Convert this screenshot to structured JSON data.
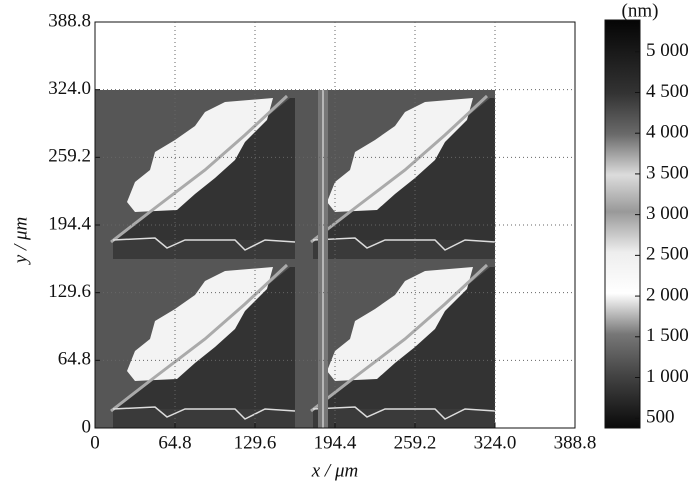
{
  "chart_data": {
    "type": "heatmap",
    "xlabel": "x / μm",
    "ylabel": "y / μm",
    "xlim": [
      0,
      388.8
    ],
    "xticks": [
      0,
      64.8,
      129.6,
      194.4,
      259.2,
      {
        "value": 324,
        "label": "324.0"
      },
      388.8
    ],
    "ylim": [
      0,
      388.8
    ],
    "yticks": [
      0,
      64.8,
      129.6,
      194.4,
      259.2,
      {
        "value": 324,
        "label": "324.0"
      },
      388.8
    ],
    "grid": true,
    "colorbar": {
      "label": "(nm)",
      "lim": [
        380,
        5390
      ],
      "ticks": [
        500,
        {
          "value": 1000,
          "label": "1 000"
        },
        {
          "value": 1500,
          "label": "1 500"
        },
        {
          "value": 2000,
          "label": "2 000"
        },
        {
          "value": 2500,
          "label": "2 500"
        },
        {
          "value": 3000,
          "label": "3 000"
        },
        {
          "value": 3500,
          "label": "3 500"
        },
        {
          "value": 4000,
          "label": "4 000"
        },
        {
          "value": 4500,
          "label": "4 500"
        },
        {
          "value": 5000,
          "label": "5 000"
        }
      ]
    }
  }
}
